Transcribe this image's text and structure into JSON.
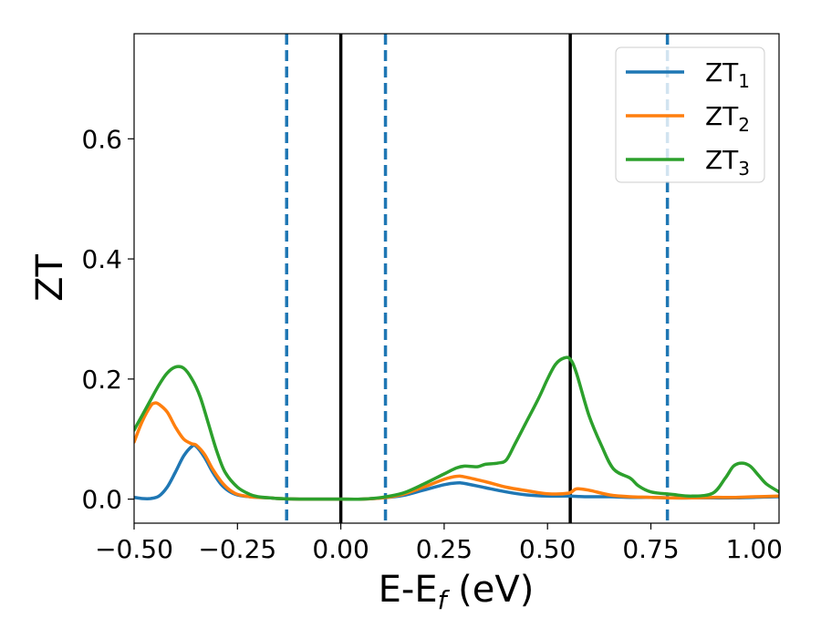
{
  "chart_data": {
    "type": "line",
    "xlabel_main": "E-E",
    "xlabel_sub": "f",
    "xlabel_unit": " (eV)",
    "ylabel": "ZT",
    "xlim": [
      -0.5,
      1.06
    ],
    "ylim": [
      -0.04,
      0.775
    ],
    "xticks": [
      -0.5,
      -0.25,
      0.0,
      0.25,
      0.5,
      0.75,
      1.0
    ],
    "xtick_labels": [
      "−0.50",
      "−0.25",
      "0.00",
      "0.25",
      "0.50",
      "0.75",
      "1.00"
    ],
    "yticks": [
      0.0,
      0.2,
      0.4,
      0.6
    ],
    "ytick_labels": [
      "0.0",
      "0.2",
      "0.4",
      "0.6"
    ],
    "grid": false,
    "legend_position": "top-right",
    "vlines": [
      {
        "x": -0.131,
        "style": "dashed",
        "color": "#1f77b4"
      },
      {
        "x": 0.0,
        "style": "solid",
        "color": "#000000"
      },
      {
        "x": 0.108,
        "style": "dashed",
        "color": "#1f77b4"
      },
      {
        "x": 0.555,
        "style": "solid",
        "color": "#000000"
      },
      {
        "x": 0.79,
        "style": "dashed",
        "color": "#1f77b4"
      }
    ],
    "series": [
      {
        "name": "ZT",
        "name_sub": "1",
        "color": "#1f77b4",
        "x": [
          -0.5,
          -0.48,
          -0.46,
          -0.44,
          -0.42,
          -0.4,
          -0.38,
          -0.36,
          -0.35,
          -0.33,
          -0.31,
          -0.29,
          -0.27,
          -0.25,
          -0.22,
          -0.2,
          -0.17,
          -0.15,
          -0.1,
          -0.05,
          0.0,
          0.05,
          0.1,
          0.15,
          0.2,
          0.25,
          0.28,
          0.3,
          0.35,
          0.4,
          0.45,
          0.5,
          0.55,
          0.6,
          0.65,
          0.7,
          0.75,
          0.8,
          0.85,
          0.9,
          0.95,
          1.0,
          1.06
        ],
        "y": [
          0.003,
          0.001,
          0.001,
          0.005,
          0.02,
          0.045,
          0.072,
          0.088,
          0.088,
          0.07,
          0.045,
          0.025,
          0.013,
          0.007,
          0.004,
          0.003,
          0.002,
          0.001,
          0.0,
          0.0,
          0.0,
          0.0,
          0.002,
          0.006,
          0.015,
          0.024,
          0.027,
          0.026,
          0.019,
          0.012,
          0.007,
          0.005,
          0.005,
          0.004,
          0.004,
          0.003,
          0.003,
          0.002,
          0.002,
          0.002,
          0.002,
          0.003,
          0.004
        ]
      },
      {
        "name": "ZT",
        "name_sub": "2",
        "color": "#ff7f0e",
        "x": [
          -0.5,
          -0.48,
          -0.46,
          -0.45,
          -0.44,
          -0.42,
          -0.4,
          -0.38,
          -0.36,
          -0.35,
          -0.33,
          -0.31,
          -0.29,
          -0.27,
          -0.25,
          -0.22,
          -0.2,
          -0.17,
          -0.15,
          -0.1,
          -0.05,
          0.0,
          0.05,
          0.1,
          0.15,
          0.2,
          0.25,
          0.28,
          0.3,
          0.35,
          0.4,
          0.45,
          0.5,
          0.55,
          0.57,
          0.6,
          0.65,
          0.7,
          0.75,
          0.8,
          0.85,
          0.9,
          0.95,
          1.0,
          1.06
        ],
        "y": [
          0.095,
          0.13,
          0.155,
          0.16,
          0.158,
          0.145,
          0.12,
          0.1,
          0.092,
          0.09,
          0.075,
          0.05,
          0.03,
          0.016,
          0.008,
          0.004,
          0.003,
          0.002,
          0.001,
          0.0,
          0.0,
          0.0,
          0.0,
          0.002,
          0.008,
          0.02,
          0.033,
          0.038,
          0.037,
          0.029,
          0.02,
          0.014,
          0.009,
          0.01,
          0.017,
          0.015,
          0.007,
          0.004,
          0.003,
          0.002,
          0.002,
          0.003,
          0.003,
          0.004,
          0.005
        ]
      },
      {
        "name": "ZT",
        "name_sub": "3",
        "color": "#2ca02c",
        "x": [
          -0.5,
          -0.48,
          -0.46,
          -0.44,
          -0.42,
          -0.4,
          -0.38,
          -0.36,
          -0.34,
          -0.32,
          -0.3,
          -0.28,
          -0.25,
          -0.22,
          -0.2,
          -0.17,
          -0.15,
          -0.1,
          -0.05,
          0.0,
          0.05,
          0.1,
          0.15,
          0.2,
          0.25,
          0.28,
          0.3,
          0.33,
          0.35,
          0.38,
          0.4,
          0.42,
          0.45,
          0.48,
          0.5,
          0.52,
          0.54,
          0.555,
          0.57,
          0.6,
          0.63,
          0.66,
          0.7,
          0.72,
          0.75,
          0.8,
          0.85,
          0.9,
          0.93,
          0.95,
          0.97,
          0.99,
          1.01,
          1.03,
          1.06
        ],
        "y": [
          0.115,
          0.14,
          0.165,
          0.19,
          0.21,
          0.22,
          0.218,
          0.2,
          0.17,
          0.125,
          0.08,
          0.045,
          0.02,
          0.008,
          0.004,
          0.002,
          0.001,
          0.0,
          0.0,
          0.0,
          0.0,
          0.003,
          0.01,
          0.025,
          0.042,
          0.052,
          0.055,
          0.054,
          0.058,
          0.06,
          0.065,
          0.09,
          0.13,
          0.17,
          0.2,
          0.225,
          0.235,
          0.233,
          0.21,
          0.14,
          0.09,
          0.05,
          0.035,
          0.022,
          0.012,
          0.008,
          0.005,
          0.01,
          0.035,
          0.055,
          0.06,
          0.055,
          0.04,
          0.025,
          0.012
        ]
      }
    ]
  }
}
